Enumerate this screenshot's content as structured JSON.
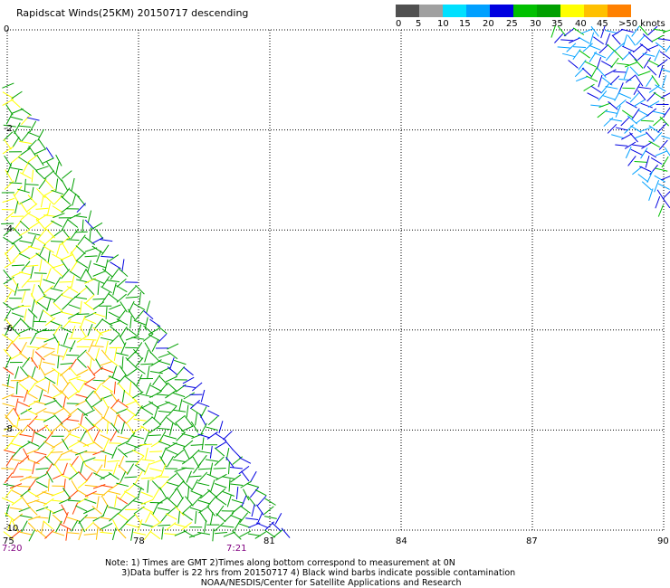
{
  "title": "Rapidscat Winds(25KM) 20150717 descending",
  "legend": {
    "colors": [
      "#505050",
      "#a0a0a0",
      "#00e0ff",
      "#00a0ff",
      "#0000e0",
      "#00c000",
      "#00a000",
      "#ffff00",
      "#ffc000",
      "#ff8000",
      "#ff4000",
      "#ff0000",
      "#c00000",
      "#804020",
      "#c08040",
      "#ff40ff",
      "#c000c0",
      "#8000ff",
      "#400080"
    ],
    "labels": [
      "0",
      "5",
      "10",
      "15",
      "20",
      "25",
      "30",
      "35",
      "40",
      "45",
      ">50 knots"
    ]
  },
  "axes": {
    "x_ticks": [
      "75",
      "78",
      "81",
      "84",
      "87",
      "90"
    ],
    "y_ticks": [
      "0",
      "-2",
      "-4",
      "-6",
      "-8",
      "-10"
    ]
  },
  "times": [
    "7:20",
    "7:21"
  ],
  "notes": [
    "Note: 1) Times are GMT 2)Times along bottom correspond to measurement at 0N",
    "      3)Data buffer is 22 hrs from 20150717 4) Black wind barbs indicate possible contamination",
    "                                   NOAA/NESDIS/Center for Satellite Applications and Research"
  ]
}
